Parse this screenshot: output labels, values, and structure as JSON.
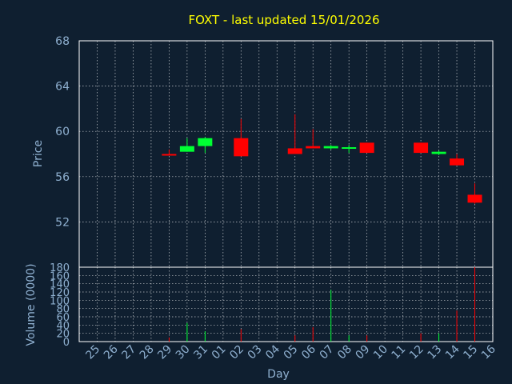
{
  "chart_data": {
    "type": "candlestick",
    "title": "FOXT - last updated 15/01/2026",
    "colors": {
      "background": "#0f1f30",
      "up": "#00ff33",
      "down": "#ff0000",
      "title": "#ffff00",
      "axis_text": "#8fb0d0",
      "grid": "#ffffff"
    },
    "price_panel": {
      "ylabel": "Price",
      "ylim": [
        48,
        68
      ],
      "yticks": [
        "52",
        "56",
        "60",
        "64",
        "68"
      ]
    },
    "volume_panel": {
      "ylabel": "Volume (0000)",
      "ylim": [
        0,
        180
      ],
      "yticks": [
        "0",
        "20",
        "40",
        "60",
        "80",
        "100",
        "120",
        "140",
        "160",
        "180"
      ]
    },
    "xlabel": "Day",
    "x_ticks": [
      "25",
      "26",
      "27",
      "28",
      "29",
      "30",
      "31",
      "01",
      "02",
      "03",
      "04",
      "05",
      "06",
      "07",
      "08",
      "09",
      "10",
      "11",
      "12",
      "13",
      "14",
      "15",
      "16"
    ],
    "candles": [
      {
        "day": "29",
        "open": 58.0,
        "close": 57.9,
        "high": 58.4,
        "low": 57.9,
        "volume": 10
      },
      {
        "day": "30",
        "open": 58.2,
        "close": 58.7,
        "high": 59.4,
        "low": 58.2,
        "volume": 45
      },
      {
        "day": "31",
        "open": 58.7,
        "close": 59.4,
        "high": 59.5,
        "low": 58.1,
        "volume": 25
      },
      {
        "day": "02",
        "open": 59.4,
        "close": 57.8,
        "high": 61.1,
        "low": 57.8,
        "volume": 30
      },
      {
        "day": "05",
        "open": 58.5,
        "close": 58.0,
        "high": 61.5,
        "low": 58.0,
        "volume": 15
      },
      {
        "day": "06",
        "open": 58.7,
        "close": 58.5,
        "high": 60.2,
        "low": 58.5,
        "volume": 35
      },
      {
        "day": "07",
        "open": 58.5,
        "close": 58.7,
        "high": 58.8,
        "low": 58.4,
        "volume": 125
      },
      {
        "day": "08",
        "open": 58.5,
        "close": 58.6,
        "high": 58.8,
        "low": 58.1,
        "volume": 15
      },
      {
        "day": "09",
        "open": 59.0,
        "close": 58.1,
        "high": 59.0,
        "low": 58.1,
        "volume": 15
      },
      {
        "day": "12",
        "open": 59.0,
        "close": 58.1,
        "high": 59.0,
        "low": 58.1,
        "volume": 20
      },
      {
        "day": "13",
        "open": 58.0,
        "close": 58.2,
        "high": 58.3,
        "low": 57.9,
        "volume": 20
      },
      {
        "day": "14",
        "open": 57.6,
        "close": 57.0,
        "high": 58.0,
        "low": 57.0,
        "volume": 75
      },
      {
        "day": "15",
        "open": 54.4,
        "close": 53.7,
        "high": 55.4,
        "low": 53.6,
        "volume": 180
      }
    ]
  }
}
